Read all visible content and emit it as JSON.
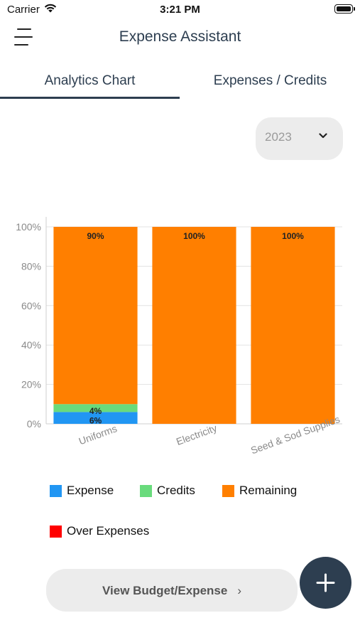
{
  "status_bar": {
    "carrier": "Carrier",
    "time": "3:21 PM"
  },
  "header": {
    "title": "Expense Assistant"
  },
  "tabs": [
    {
      "label": "Analytics Chart",
      "active": true
    },
    {
      "label": "Expenses / Credits",
      "active": false
    }
  ],
  "year_select": {
    "value": "2023"
  },
  "chart_data": {
    "type": "bar",
    "stacked": true,
    "categories": [
      "Uniforms",
      "Electricity",
      "Seed & Sod Supplies"
    ],
    "series": [
      {
        "name": "Expense",
        "color": "#2196F3",
        "values": [
          6,
          0,
          0
        ]
      },
      {
        "name": "Credits",
        "color": "#69DB7C",
        "values": [
          4,
          0,
          0
        ]
      },
      {
        "name": "Remaining",
        "color": "#FF7F00",
        "values": [
          90,
          100,
          100
        ]
      },
      {
        "name": "Over Expenses",
        "color": "#FF0000",
        "values": [
          0,
          0,
          0
        ]
      }
    ],
    "y_ticks": [
      "0%",
      "20%",
      "40%",
      "60%",
      "80%",
      "100%"
    ],
    "ylim": [
      0,
      100
    ],
    "legend_position": "bottom"
  },
  "actions": {
    "view_button": "View Budget/Expense",
    "view_arrow": "›",
    "fab_icon": "plus-icon"
  }
}
